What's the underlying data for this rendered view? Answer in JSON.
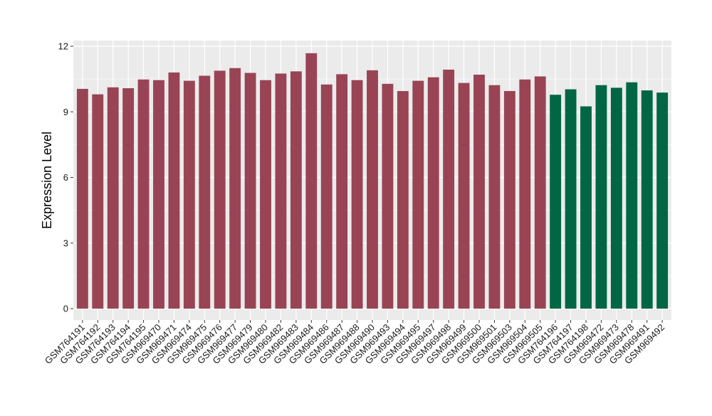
{
  "chart_data": {
    "type": "bar",
    "title": "",
    "xlabel": "",
    "ylabel": "Expression Level",
    "ylim": [
      0,
      12
    ],
    "yticks": [
      0,
      3,
      6,
      9,
      12
    ],
    "grid": true,
    "panel_background": "#EBEBEB",
    "grid_color": "#FFFFFF",
    "categories": [
      "GSM764191",
      "GSM764192",
      "GSM764193",
      "GSM764194",
      "GSM764195",
      "GSM969470",
      "GSM969471",
      "GSM969474",
      "GSM969475",
      "GSM969476",
      "GSM969477",
      "GSM969479",
      "GSM969480",
      "GSM969482",
      "GSM969483",
      "GSM969484",
      "GSM969486",
      "GSM969487",
      "GSM969488",
      "GSM969490",
      "GSM969493",
      "GSM969494",
      "GSM969495",
      "GSM969497",
      "GSM969498",
      "GSM969499",
      "GSM969500",
      "GSM969501",
      "GSM969503",
      "GSM969504",
      "GSM969505",
      "GSM764196",
      "GSM764197",
      "GSM764198",
      "GSM969472",
      "GSM969473",
      "GSM969478",
      "GSM969491",
      "GSM969492"
    ],
    "values": [
      10.05,
      9.8,
      10.12,
      10.08,
      10.48,
      10.45,
      10.8,
      10.42,
      10.65,
      10.88,
      11.0,
      10.78,
      10.45,
      10.75,
      10.85,
      11.68,
      10.25,
      10.72,
      10.45,
      10.9,
      10.28,
      9.95,
      10.42,
      10.58,
      10.93,
      10.32,
      10.7,
      10.22,
      9.95,
      10.48,
      10.62,
      9.78,
      10.03,
      9.25,
      10.22,
      10.1,
      10.35,
      9.98,
      9.88
    ],
    "bar_groups": [
      0,
      0,
      0,
      0,
      0,
      0,
      0,
      0,
      0,
      0,
      0,
      0,
      0,
      0,
      0,
      0,
      0,
      0,
      0,
      0,
      0,
      0,
      0,
      0,
      0,
      0,
      0,
      0,
      0,
      0,
      0,
      1,
      1,
      1,
      1,
      1,
      1,
      1,
      1
    ],
    "group_colors": [
      "#994455",
      "#006644"
    ]
  }
}
